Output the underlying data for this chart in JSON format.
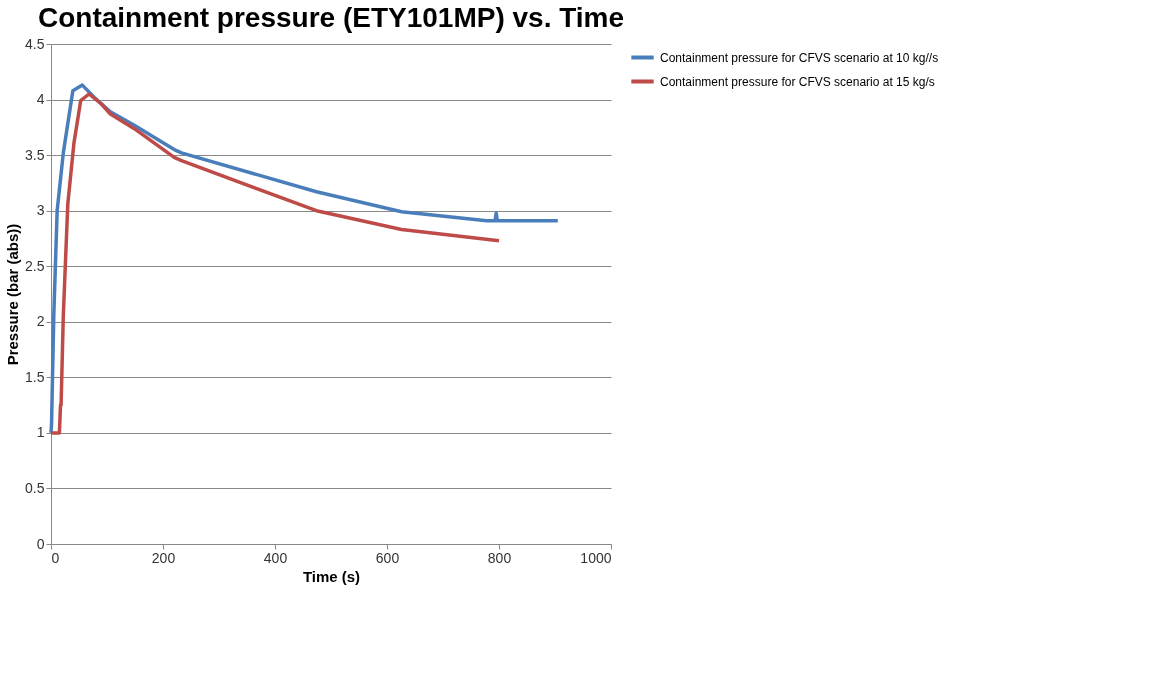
{
  "chart_data": {
    "type": "line",
    "title": "Containment pressure (ETY101MP)  vs. Time",
    "xlabel": "Time (s)",
    "ylabel": "Pressure (bar (abs))",
    "xlim": [
      0,
      1000
    ],
    "xticks": [
      0,
      200,
      400,
      600,
      800,
      1000
    ],
    "ylim": [
      0,
      4.5
    ],
    "yticks": [
      0,
      0.5,
      1,
      1.5,
      2,
      2.5,
      3,
      3.5,
      4,
      4.5
    ],
    "grid": "y",
    "legend": "right",
    "marker": "none",
    "line_style": "solid",
    "series": [
      {
        "name": "Containment pressure for CFVS scenario at 10 kg//s",
        "color": "#4a7ebb",
        "x": [
          0,
          1,
          5,
          11,
          22,
          39,
          56,
          77,
          106,
          148,
          220,
          233,
          474,
          626,
          778,
          793,
          795,
          797,
          905
        ],
        "values": [
          1.0,
          1.08,
          2.06,
          3.0,
          3.52,
          4.08,
          4.13,
          4.02,
          3.89,
          3.77,
          3.55,
          3.52,
          3.17,
          2.99,
          2.91,
          2.91,
          2.98,
          2.91,
          2.91
        ]
      },
      {
        "name": "Containment pressure for CFVS scenario at 15 kg/s",
        "color": "#be4b48",
        "x": [
          0,
          15,
          17,
          18,
          22,
          30,
          41,
          53,
          68,
          90,
          106,
          148,
          220,
          233,
          474,
          626,
          800
        ],
        "values": [
          1.0,
          1.0,
          1.25,
          1.25,
          2.06,
          3.06,
          3.61,
          3.99,
          4.05,
          3.96,
          3.87,
          3.74,
          3.48,
          3.45,
          3.0,
          2.83,
          2.73
        ]
      }
    ]
  }
}
